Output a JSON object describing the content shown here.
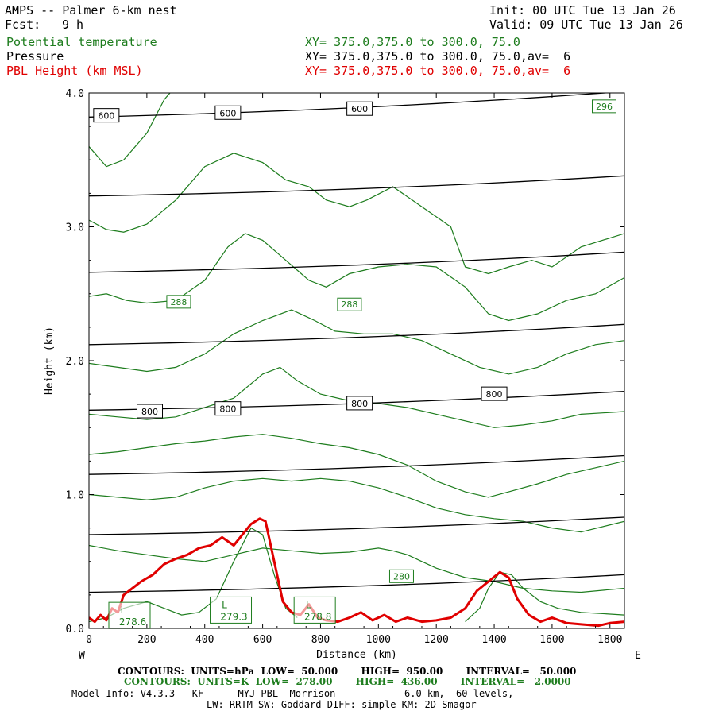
{
  "header": {
    "title": "AMPS -- Palmer 6-km nest",
    "fcst_label": "Fcst:",
    "fcst_value": "9 h",
    "init": "Init: 00 UTC Tue 13 Jan 26",
    "valid": "Valid: 09 UTC Tue 13 Jan 26"
  },
  "fields": [
    {
      "name": "Potential temperature",
      "xy": "XY= 375.0,375.0 to 300.0, 75.0",
      "color": "#1e7d1e"
    },
    {
      "name": "Pressure",
      "xy": "XY= 375.0,375.0 to 300.0, 75.0,av=  6",
      "color": "#000000"
    },
    {
      "name": "PBL Height (km MSL)",
      "xy": "XY= 375.0,375.0 to 300.0, 75.0,av=  6",
      "color": "#e00000"
    }
  ],
  "chart_data": {
    "type": "line",
    "xlabel": "Distance (km)",
    "ylabel": "Height (km)",
    "xlim": [
      0,
      1850
    ],
    "ylim": [
      0,
      4.0
    ],
    "xticks": [
      0,
      200,
      400,
      600,
      800,
      1000,
      1200,
      1400,
      1600,
      1800
    ],
    "yticks": [
      0.0,
      1.0,
      2.0,
      3.0,
      4.0
    ],
    "xtick_labels": [
      "0",
      "200",
      "400",
      "600",
      "800",
      "1000",
      "1200",
      "1400",
      "1600",
      "1800"
    ],
    "ytick_labels": [
      "0.0",
      "1.0",
      "2.0",
      "3.0",
      "4.0"
    ],
    "west_label": "W",
    "east_label": "E",
    "pressure_contours": [
      {
        "start": 3.82,
        "end": 4.03
      },
      {
        "start": 3.23,
        "end": 3.4
      },
      {
        "start": 2.66,
        "end": 2.83
      },
      {
        "start": 2.12,
        "end": 2.29
      },
      {
        "start": 1.63,
        "end": 1.79
      },
      {
        "start": 1.15,
        "end": 1.31
      },
      {
        "start": 0.7,
        "end": 0.85
      },
      {
        "start": 0.27,
        "end": 0.42
      }
    ],
    "pressure_labels": [
      {
        "text": "600",
        "x": 60,
        "y": 3.83
      },
      {
        "text": "600",
        "x": 480,
        "y": 3.85
      },
      {
        "text": "600",
        "x": 935,
        "y": 3.88
      },
      {
        "text": "800",
        "x": 210,
        "y": 1.62
      },
      {
        "text": "800",
        "x": 480,
        "y": 1.64
      },
      {
        "text": "800",
        "x": 935,
        "y": 1.68
      },
      {
        "text": "800",
        "x": 1400,
        "y": 1.75
      }
    ],
    "theta_contours": [
      [
        [
          0,
          3.6
        ],
        [
          60,
          3.45
        ],
        [
          120,
          3.5
        ],
        [
          200,
          3.7
        ],
        [
          260,
          3.95
        ],
        [
          300,
          4.05
        ]
      ],
      [
        [
          0,
          3.05
        ],
        [
          60,
          2.98
        ],
        [
          120,
          2.96
        ],
        [
          200,
          3.02
        ],
        [
          300,
          3.2
        ],
        [
          400,
          3.45
        ],
        [
          500,
          3.55
        ],
        [
          600,
          3.48
        ],
        [
          680,
          3.35
        ],
        [
          760,
          3.3
        ],
        [
          820,
          3.2
        ],
        [
          900,
          3.15
        ],
        [
          960,
          3.2
        ],
        [
          1050,
          3.3
        ],
        [
          1150,
          3.15
        ],
        [
          1250,
          3.0
        ],
        [
          1300,
          2.7
        ],
        [
          1380,
          2.65
        ],
        [
          1450,
          2.7
        ],
        [
          1530,
          2.75
        ],
        [
          1600,
          2.7
        ],
        [
          1700,
          2.85
        ],
        [
          1850,
          2.95
        ]
      ],
      [
        [
          0,
          2.48
        ],
        [
          60,
          2.5
        ],
        [
          130,
          2.45
        ],
        [
          200,
          2.43
        ],
        [
          300,
          2.45
        ],
        [
          400,
          2.6
        ],
        [
          480,
          2.85
        ],
        [
          540,
          2.95
        ],
        [
          600,
          2.9
        ],
        [
          680,
          2.75
        ],
        [
          760,
          2.6
        ],
        [
          820,
          2.55
        ],
        [
          900,
          2.65
        ],
        [
          1000,
          2.7
        ],
        [
          1100,
          2.72
        ],
        [
          1200,
          2.7
        ],
        [
          1300,
          2.55
        ],
        [
          1380,
          2.35
        ],
        [
          1450,
          2.3
        ],
        [
          1550,
          2.35
        ],
        [
          1650,
          2.45
        ],
        [
          1750,
          2.5
        ],
        [
          1850,
          2.62
        ]
      ],
      [
        [
          0,
          1.98
        ],
        [
          100,
          1.95
        ],
        [
          200,
          1.92
        ],
        [
          300,
          1.95
        ],
        [
          400,
          2.05
        ],
        [
          500,
          2.2
        ],
        [
          600,
          2.3
        ],
        [
          700,
          2.38
        ],
        [
          780,
          2.3
        ],
        [
          850,
          2.22
        ],
        [
          950,
          2.2
        ],
        [
          1050,
          2.2
        ],
        [
          1150,
          2.15
        ],
        [
          1250,
          2.05
        ],
        [
          1350,
          1.95
        ],
        [
          1450,
          1.9
        ],
        [
          1550,
          1.95
        ],
        [
          1650,
          2.05
        ],
        [
          1750,
          2.12
        ],
        [
          1850,
          2.15
        ]
      ],
      [
        [
          0,
          1.6
        ],
        [
          100,
          1.58
        ],
        [
          200,
          1.56
        ],
        [
          300,
          1.58
        ],
        [
          400,
          1.65
        ],
        [
          500,
          1.72
        ],
        [
          600,
          1.9
        ],
        [
          660,
          1.95
        ],
        [
          720,
          1.85
        ],
        [
          800,
          1.75
        ],
        [
          900,
          1.7
        ],
        [
          1000,
          1.68
        ],
        [
          1100,
          1.65
        ],
        [
          1200,
          1.6
        ],
        [
          1300,
          1.55
        ],
        [
          1400,
          1.5
        ],
        [
          1500,
          1.52
        ],
        [
          1600,
          1.55
        ],
        [
          1700,
          1.6
        ],
        [
          1850,
          1.62
        ]
      ],
      [
        [
          0,
          1.3
        ],
        [
          100,
          1.32
        ],
        [
          200,
          1.35
        ],
        [
          300,
          1.38
        ],
        [
          400,
          1.4
        ],
        [
          500,
          1.43
        ],
        [
          600,
          1.45
        ],
        [
          700,
          1.42
        ],
        [
          800,
          1.38
        ],
        [
          900,
          1.35
        ],
        [
          1000,
          1.3
        ],
        [
          1100,
          1.22
        ],
        [
          1200,
          1.1
        ],
        [
          1300,
          1.02
        ],
        [
          1380,
          0.98
        ],
        [
          1450,
          1.02
        ],
        [
          1550,
          1.08
        ],
        [
          1650,
          1.15
        ],
        [
          1750,
          1.2
        ],
        [
          1850,
          1.25
        ]
      ],
      [
        [
          0,
          1.0
        ],
        [
          100,
          0.98
        ],
        [
          200,
          0.96
        ],
        [
          300,
          0.98
        ],
        [
          400,
          1.05
        ],
        [
          500,
          1.1
        ],
        [
          600,
          1.12
        ],
        [
          700,
          1.1
        ],
        [
          800,
          1.12
        ],
        [
          900,
          1.1
        ],
        [
          1000,
          1.05
        ],
        [
          1100,
          0.98
        ],
        [
          1200,
          0.9
        ],
        [
          1300,
          0.85
        ],
        [
          1400,
          0.82
        ],
        [
          1500,
          0.8
        ],
        [
          1600,
          0.75
        ],
        [
          1700,
          0.72
        ],
        [
          1850,
          0.8
        ]
      ],
      [
        [
          0,
          0.62
        ],
        [
          100,
          0.58
        ],
        [
          200,
          0.55
        ],
        [
          300,
          0.52
        ],
        [
          400,
          0.5
        ],
        [
          500,
          0.55
        ],
        [
          600,
          0.6
        ],
        [
          700,
          0.58
        ],
        [
          800,
          0.56
        ],
        [
          900,
          0.57
        ],
        [
          1000,
          0.6
        ],
        [
          1050,
          0.58
        ],
        [
          1100,
          0.55
        ],
        [
          1150,
          0.5
        ],
        [
          1200,
          0.45
        ],
        [
          1300,
          0.38
        ],
        [
          1400,
          0.35
        ],
        [
          1500,
          0.3
        ],
        [
          1600,
          0.28
        ],
        [
          1700,
          0.27
        ],
        [
          1850,
          0.3
        ]
      ],
      [
        [
          0,
          0.05
        ],
        [
          60,
          0.08
        ],
        [
          120,
          0.15
        ],
        [
          200,
          0.2
        ],
        [
          260,
          0.15
        ],
        [
          320,
          0.1
        ],
        [
          380,
          0.12
        ],
        [
          440,
          0.22
        ],
        [
          500,
          0.5
        ],
        [
          560,
          0.75
        ],
        [
          600,
          0.7
        ],
        [
          640,
          0.4
        ],
        [
          680,
          0.15
        ],
        [
          720,
          0.08
        ]
      ],
      [
        [
          1300,
          0.05
        ],
        [
          1350,
          0.15
        ],
        [
          1380,
          0.3
        ],
        [
          1420,
          0.42
        ],
        [
          1460,
          0.4
        ],
        [
          1500,
          0.3
        ],
        [
          1560,
          0.2
        ],
        [
          1620,
          0.15
        ],
        [
          1700,
          0.12
        ],
        [
          1850,
          0.1
        ]
      ]
    ],
    "theta_labels": [
      {
        "text": "296",
        "x": 1780,
        "y": 3.9
      },
      {
        "text": "288",
        "x": 310,
        "y": 2.44
      },
      {
        "text": "288",
        "x": 900,
        "y": 2.42
      },
      {
        "text": "280",
        "x": 1080,
        "y": 0.39
      }
    ],
    "low_labels": [
      {
        "letter": "L",
        "value": "278.6",
        "x": 140,
        "y": 0.1
      },
      {
        "letter": "L",
        "value": "279.3",
        "x": 490,
        "y": 0.14
      },
      {
        "letter": "L",
        "value": "278.8",
        "x": 780,
        "y": 0.14
      }
    ],
    "pbl_height": [
      [
        0,
        0.08
      ],
      [
        20,
        0.05
      ],
      [
        40,
        0.1
      ],
      [
        60,
        0.06
      ],
      [
        80,
        0.15
      ],
      [
        100,
        0.12
      ],
      [
        120,
        0.25
      ],
      [
        150,
        0.3
      ],
      [
        180,
        0.35
      ],
      [
        220,
        0.4
      ],
      [
        260,
        0.48
      ],
      [
        300,
        0.52
      ],
      [
        340,
        0.55
      ],
      [
        380,
        0.6
      ],
      [
        420,
        0.62
      ],
      [
        460,
        0.68
      ],
      [
        500,
        0.62
      ],
      [
        530,
        0.7
      ],
      [
        560,
        0.78
      ],
      [
        590,
        0.82
      ],
      [
        610,
        0.8
      ],
      [
        630,
        0.6
      ],
      [
        650,
        0.4
      ],
      [
        670,
        0.2
      ],
      [
        700,
        0.12
      ],
      [
        730,
        0.1
      ],
      [
        760,
        0.18
      ],
      [
        790,
        0.08
      ],
      [
        820,
        0.06
      ],
      [
        860,
        0.05
      ],
      [
        900,
        0.08
      ],
      [
        940,
        0.12
      ],
      [
        980,
        0.06
      ],
      [
        1020,
        0.1
      ],
      [
        1060,
        0.05
      ],
      [
        1100,
        0.08
      ],
      [
        1150,
        0.05
      ],
      [
        1200,
        0.06
      ],
      [
        1250,
        0.08
      ],
      [
        1300,
        0.15
      ],
      [
        1340,
        0.28
      ],
      [
        1380,
        0.35
      ],
      [
        1420,
        0.42
      ],
      [
        1450,
        0.38
      ],
      [
        1480,
        0.22
      ],
      [
        1520,
        0.1
      ],
      [
        1560,
        0.05
      ],
      [
        1600,
        0.08
      ],
      [
        1650,
        0.04
      ],
      [
        1700,
        0.03
      ],
      [
        1760,
        0.02
      ],
      [
        1800,
        0.04
      ],
      [
        1850,
        0.05
      ]
    ]
  },
  "footer": {
    "contours_pressure": "CONTOURS:  UNITS=hPa  LOW=  50.000       HIGH=  950.00       INTERVAL=   50.000",
    "contours_theta": "CONTOURS:  UNITS=K  LOW=  278.00       HIGH=  436.00       INTERVAL=   2.0000",
    "model_info": "Model Info: V4.3.3   KF      MYJ PBL  Morrison            6.0 km,  60 levels,",
    "model_info2": "LW: RRTM SW: Goddard DIFF: simple KM: 2D Smagor"
  }
}
